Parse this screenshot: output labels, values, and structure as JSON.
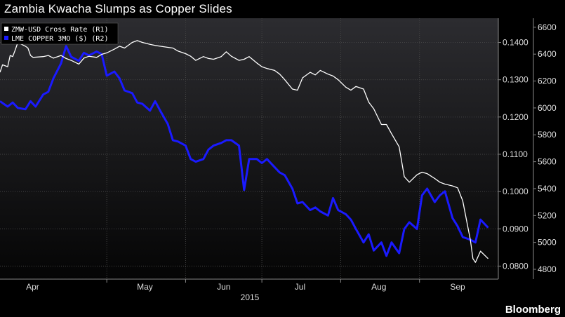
{
  "title": "Zambia Kwacha Slumps as Copper Slides",
  "source": "Bloomberg",
  "chart_data": {
    "type": "line",
    "title": "Zambia Kwacha Slumps as Copper Slides",
    "year_label": "2015",
    "x_ticks": [
      "Apr",
      "May",
      "Jun",
      "Jul",
      "Aug",
      "Sep"
    ],
    "x_tick_dates": [
      "2015-04-01",
      "2015-05-01",
      "2015-06-01",
      "2015-07-01",
      "2015-08-01",
      "2015-09-01"
    ],
    "xlim": [
      "2015-03-20",
      "2015-10-02"
    ],
    "y1_ticks": [
      "0.0800",
      "0.0900",
      "0.1000",
      "0.1100",
      "0.1200",
      "0.1300",
      "0.1400"
    ],
    "y1lim": [
      0.0765,
      0.1465
    ],
    "y2_ticks": [
      "4800",
      "5000",
      "5200",
      "5400",
      "5600",
      "5800",
      "6000",
      "6200",
      "6400",
      "6600"
    ],
    "y2lim": [
      4727,
      6667
    ],
    "grid": true,
    "legend_position": "top-left",
    "series": [
      {
        "name": "ZMW-USD Cross Rate  (R1)",
        "axis": "right-1",
        "color": "#ffffff",
        "x": [
          "2015-03-20",
          "2015-03-21",
          "2015-03-23",
          "2015-03-24",
          "2015-03-25",
          "2015-03-26",
          "2015-03-27",
          "2015-03-30",
          "2015-03-31",
          "2015-04-01",
          "2015-04-02",
          "2015-04-06",
          "2015-04-08",
          "2015-04-10",
          "2015-04-13",
          "2015-04-15",
          "2015-04-17",
          "2015-04-20",
          "2015-04-22",
          "2015-04-24",
          "2015-04-27",
          "2015-04-29",
          "2015-05-01",
          "2015-05-04",
          "2015-05-06",
          "2015-05-08",
          "2015-05-11",
          "2015-05-13",
          "2015-05-15",
          "2015-05-18",
          "2015-05-20",
          "2015-05-22",
          "2015-05-25",
          "2015-05-27",
          "2015-05-29",
          "2015-06-01",
          "2015-06-03",
          "2015-06-05",
          "2015-06-08",
          "2015-06-10",
          "2015-06-12",
          "2015-06-15",
          "2015-06-17",
          "2015-06-19",
          "2015-06-22",
          "2015-06-24",
          "2015-06-26",
          "2015-06-29",
          "2015-07-01",
          "2015-07-03",
          "2015-07-06",
          "2015-07-08",
          "2015-07-10",
          "2015-07-13",
          "2015-07-15",
          "2015-07-17",
          "2015-07-20",
          "2015-07-22",
          "2015-07-24",
          "2015-07-27",
          "2015-07-29",
          "2015-07-31",
          "2015-08-03",
          "2015-08-05",
          "2015-08-07",
          "2015-08-10",
          "2015-08-12",
          "2015-08-14",
          "2015-08-17",
          "2015-08-19",
          "2015-08-21",
          "2015-08-24",
          "2015-08-26",
          "2015-08-28",
          "2015-08-31",
          "2015-09-02",
          "2015-09-04",
          "2015-09-07",
          "2015-09-09",
          "2015-09-11",
          "2015-09-14",
          "2015-09-16",
          "2015-09-18",
          "2015-09-21",
          "2015-09-22",
          "2015-09-23",
          "2015-09-24",
          "2015-09-25",
          "2015-09-28"
        ],
        "values": [
          0.132,
          0.134,
          0.1335,
          0.1365,
          0.1362,
          0.138,
          0.14,
          0.139,
          0.1385,
          0.1365,
          0.136,
          0.1362,
          0.1365,
          0.1358,
          0.1365,
          0.1357,
          0.1352,
          0.1342,
          0.1358,
          0.1363,
          0.136,
          0.1368,
          0.1372,
          0.1382,
          0.139,
          0.1385,
          0.14,
          0.1405,
          0.14,
          0.1395,
          0.1392,
          0.139,
          0.1387,
          0.1385,
          0.1377,
          0.137,
          0.1363,
          0.1352,
          0.1362,
          0.1357,
          0.1355,
          0.1362,
          0.1375,
          0.1363,
          0.1352,
          0.1355,
          0.1362,
          0.1345,
          0.1335,
          0.133,
          0.1325,
          0.1315,
          0.13,
          0.1275,
          0.1272,
          0.1305,
          0.132,
          0.1313,
          0.1325,
          0.1315,
          0.131,
          0.13,
          0.128,
          0.1272,
          0.1282,
          0.1275,
          0.124,
          0.1222,
          0.118,
          0.118,
          0.1155,
          0.112,
          0.104,
          0.1025,
          0.1045,
          0.1052,
          0.1048,
          0.1035,
          0.1025,
          0.102,
          0.1015,
          0.101,
          0.0975,
          0.087,
          0.082,
          0.081,
          0.0825,
          0.084,
          0.082
        ]
      },
      {
        "name": "LME COPPER 3MO ($)  (R2)",
        "axis": "right-2",
        "color": "#1a1aff",
        "x": [
          "2015-03-20",
          "2015-03-23",
          "2015-03-25",
          "2015-03-27",
          "2015-03-30",
          "2015-04-01",
          "2015-04-03",
          "2015-04-06",
          "2015-04-08",
          "2015-04-10",
          "2015-04-13",
          "2015-04-15",
          "2015-04-17",
          "2015-04-20",
          "2015-04-22",
          "2015-04-24",
          "2015-04-27",
          "2015-04-29",
          "2015-05-01",
          "2015-05-04",
          "2015-05-06",
          "2015-05-08",
          "2015-05-11",
          "2015-05-13",
          "2015-05-15",
          "2015-05-18",
          "2015-05-20",
          "2015-05-22",
          "2015-05-25",
          "2015-05-27",
          "2015-05-29",
          "2015-06-01",
          "2015-06-03",
          "2015-06-05",
          "2015-06-08",
          "2015-06-10",
          "2015-06-12",
          "2015-06-15",
          "2015-06-17",
          "2015-06-19",
          "2015-06-22",
          "2015-06-24",
          "2015-06-26",
          "2015-06-29",
          "2015-07-01",
          "2015-07-03",
          "2015-07-06",
          "2015-07-08",
          "2015-07-10",
          "2015-07-13",
          "2015-07-15",
          "2015-07-17",
          "2015-07-20",
          "2015-07-22",
          "2015-07-24",
          "2015-07-27",
          "2015-07-29",
          "2015-07-31",
          "2015-08-03",
          "2015-08-05",
          "2015-08-07",
          "2015-08-10",
          "2015-08-12",
          "2015-08-14",
          "2015-08-17",
          "2015-08-19",
          "2015-08-21",
          "2015-08-24",
          "2015-08-26",
          "2015-08-28",
          "2015-08-31",
          "2015-09-02",
          "2015-09-04",
          "2015-09-07",
          "2015-09-09",
          "2015-09-11",
          "2015-09-14",
          "2015-09-16",
          "2015-09-18",
          "2015-09-21",
          "2015-09-23",
          "2015-09-25",
          "2015-09-28"
        ],
        "values": [
          6050,
          6010,
          6040,
          6000,
          5990,
          6050,
          6010,
          6100,
          6120,
          6220,
          6330,
          6460,
          6380,
          6350,
          6410,
          6390,
          6420,
          6400,
          6240,
          6270,
          6220,
          6130,
          6110,
          6040,
          6030,
          5980,
          6050,
          5980,
          5880,
          5760,
          5750,
          5720,
          5620,
          5600,
          5620,
          5690,
          5720,
          5740,
          5760,
          5760,
          5720,
          5390,
          5620,
          5620,
          5590,
          5620,
          5560,
          5520,
          5500,
          5400,
          5290,
          5300,
          5240,
          5260,
          5230,
          5200,
          5330,
          5240,
          5210,
          5170,
          5100,
          5000,
          5060,
          4940,
          5000,
          4900,
          5000,
          4920,
          5100,
          5150,
          5100,
          5350,
          5400,
          5300,
          5350,
          5380,
          5180,
          5120,
          5040,
          5020,
          5000,
          5170,
          5110
        ]
      }
    ]
  }
}
